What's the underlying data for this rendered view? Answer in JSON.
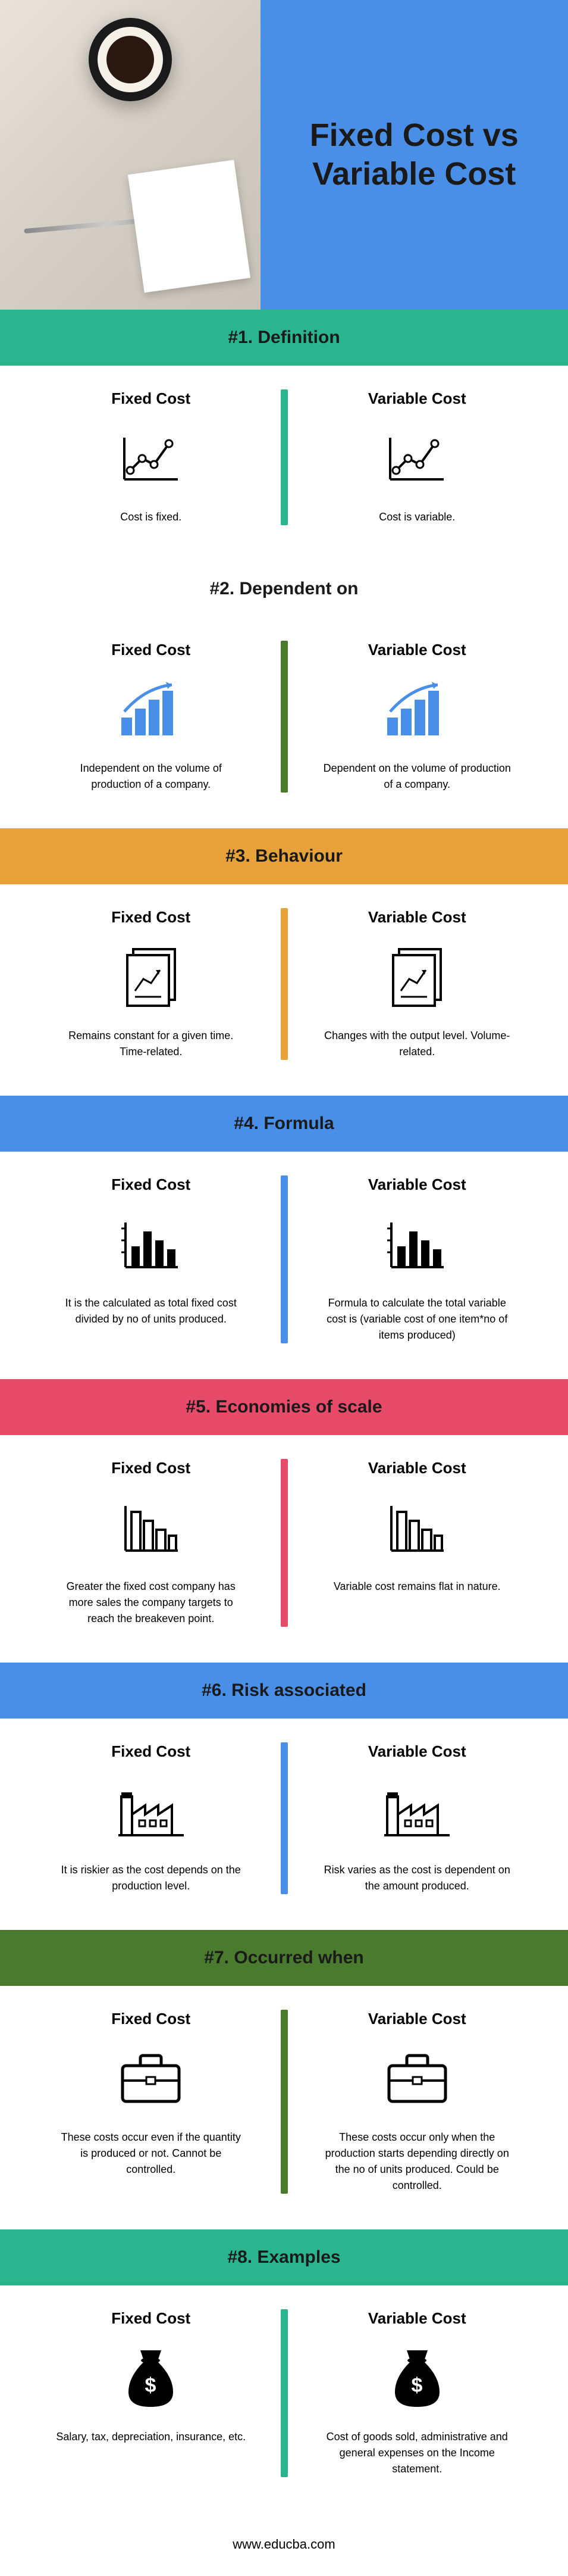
{
  "header": {
    "title": "Fixed Cost vs Variable Cost",
    "title_bg": "#4a8fe7"
  },
  "footer": "www.educba.com",
  "left_label": "Fixed Cost",
  "right_label": "Variable Cost",
  "sections": [
    {
      "title": "#1. Definition",
      "title_bg": "#2bb58e",
      "divider_color": "#2bb58e",
      "left_text": "Cost is fixed.",
      "right_text": "Cost is variable.",
      "icon": "line-chart"
    },
    {
      "title": "#2. Dependent on",
      "title_bg": "#ffffff",
      "divider_color": "#4a7a2e",
      "left_text": "Independent on the volume of production of a company.",
      "right_text": "Dependent on the volume of production of a company.",
      "icon": "bar-arrow",
      "icon_color": "#4a8fe7"
    },
    {
      "title": "#3. Behaviour",
      "title_bg": "#e8a23a",
      "divider_color": "#e8a23a",
      "left_text": "Remains constant for a given time. Time-related.",
      "right_text": "Changes with the output level. Volume-related.",
      "icon": "document-chart"
    },
    {
      "title": "#4. Formula",
      "title_bg": "#4a8fe7",
      "divider_color": "#4a8fe7",
      "left_text": "It is the calculated as total fixed cost divided by no of units produced.",
      "right_text": "Formula to calculate the total variable cost is (variable cost of one item*no of items produced)",
      "icon": "bars-axis"
    },
    {
      "title": "#5. Economies of scale",
      "title_bg": "#e84a6a",
      "divider_color": "#e84a6a",
      "left_text": "Greater the fixed cost company has more sales the company targets to reach the breakeven point.",
      "right_text": "Variable cost remains flat in nature.",
      "icon": "bars-desc"
    },
    {
      "title": "#6. Risk associated",
      "title_bg": "#4a8fe7",
      "divider_color": "#4a8fe7",
      "left_text": "It is riskier as the cost depends on the production level.",
      "right_text": "Risk varies as the cost is dependent on the amount produced.",
      "icon": "factory"
    },
    {
      "title": "#7. Occurred when",
      "title_bg": "#4a7a2e",
      "divider_color": "#4a7a2e",
      "left_text": "These costs occur even if the quantity is produced or not. Cannot be controlled.",
      "right_text": "These costs occur only when the production starts depending directly on the no of units produced. Could be controlled.",
      "icon": "briefcase"
    },
    {
      "title": "#8. Examples",
      "title_bg": "#2bb58e",
      "divider_color": "#2bb58e",
      "left_text": "Salary, tax, depreciation, insurance, etc.",
      "right_text": "Cost of goods sold, administrative and general expenses on the Income statement.",
      "icon": "money-bag"
    }
  ]
}
